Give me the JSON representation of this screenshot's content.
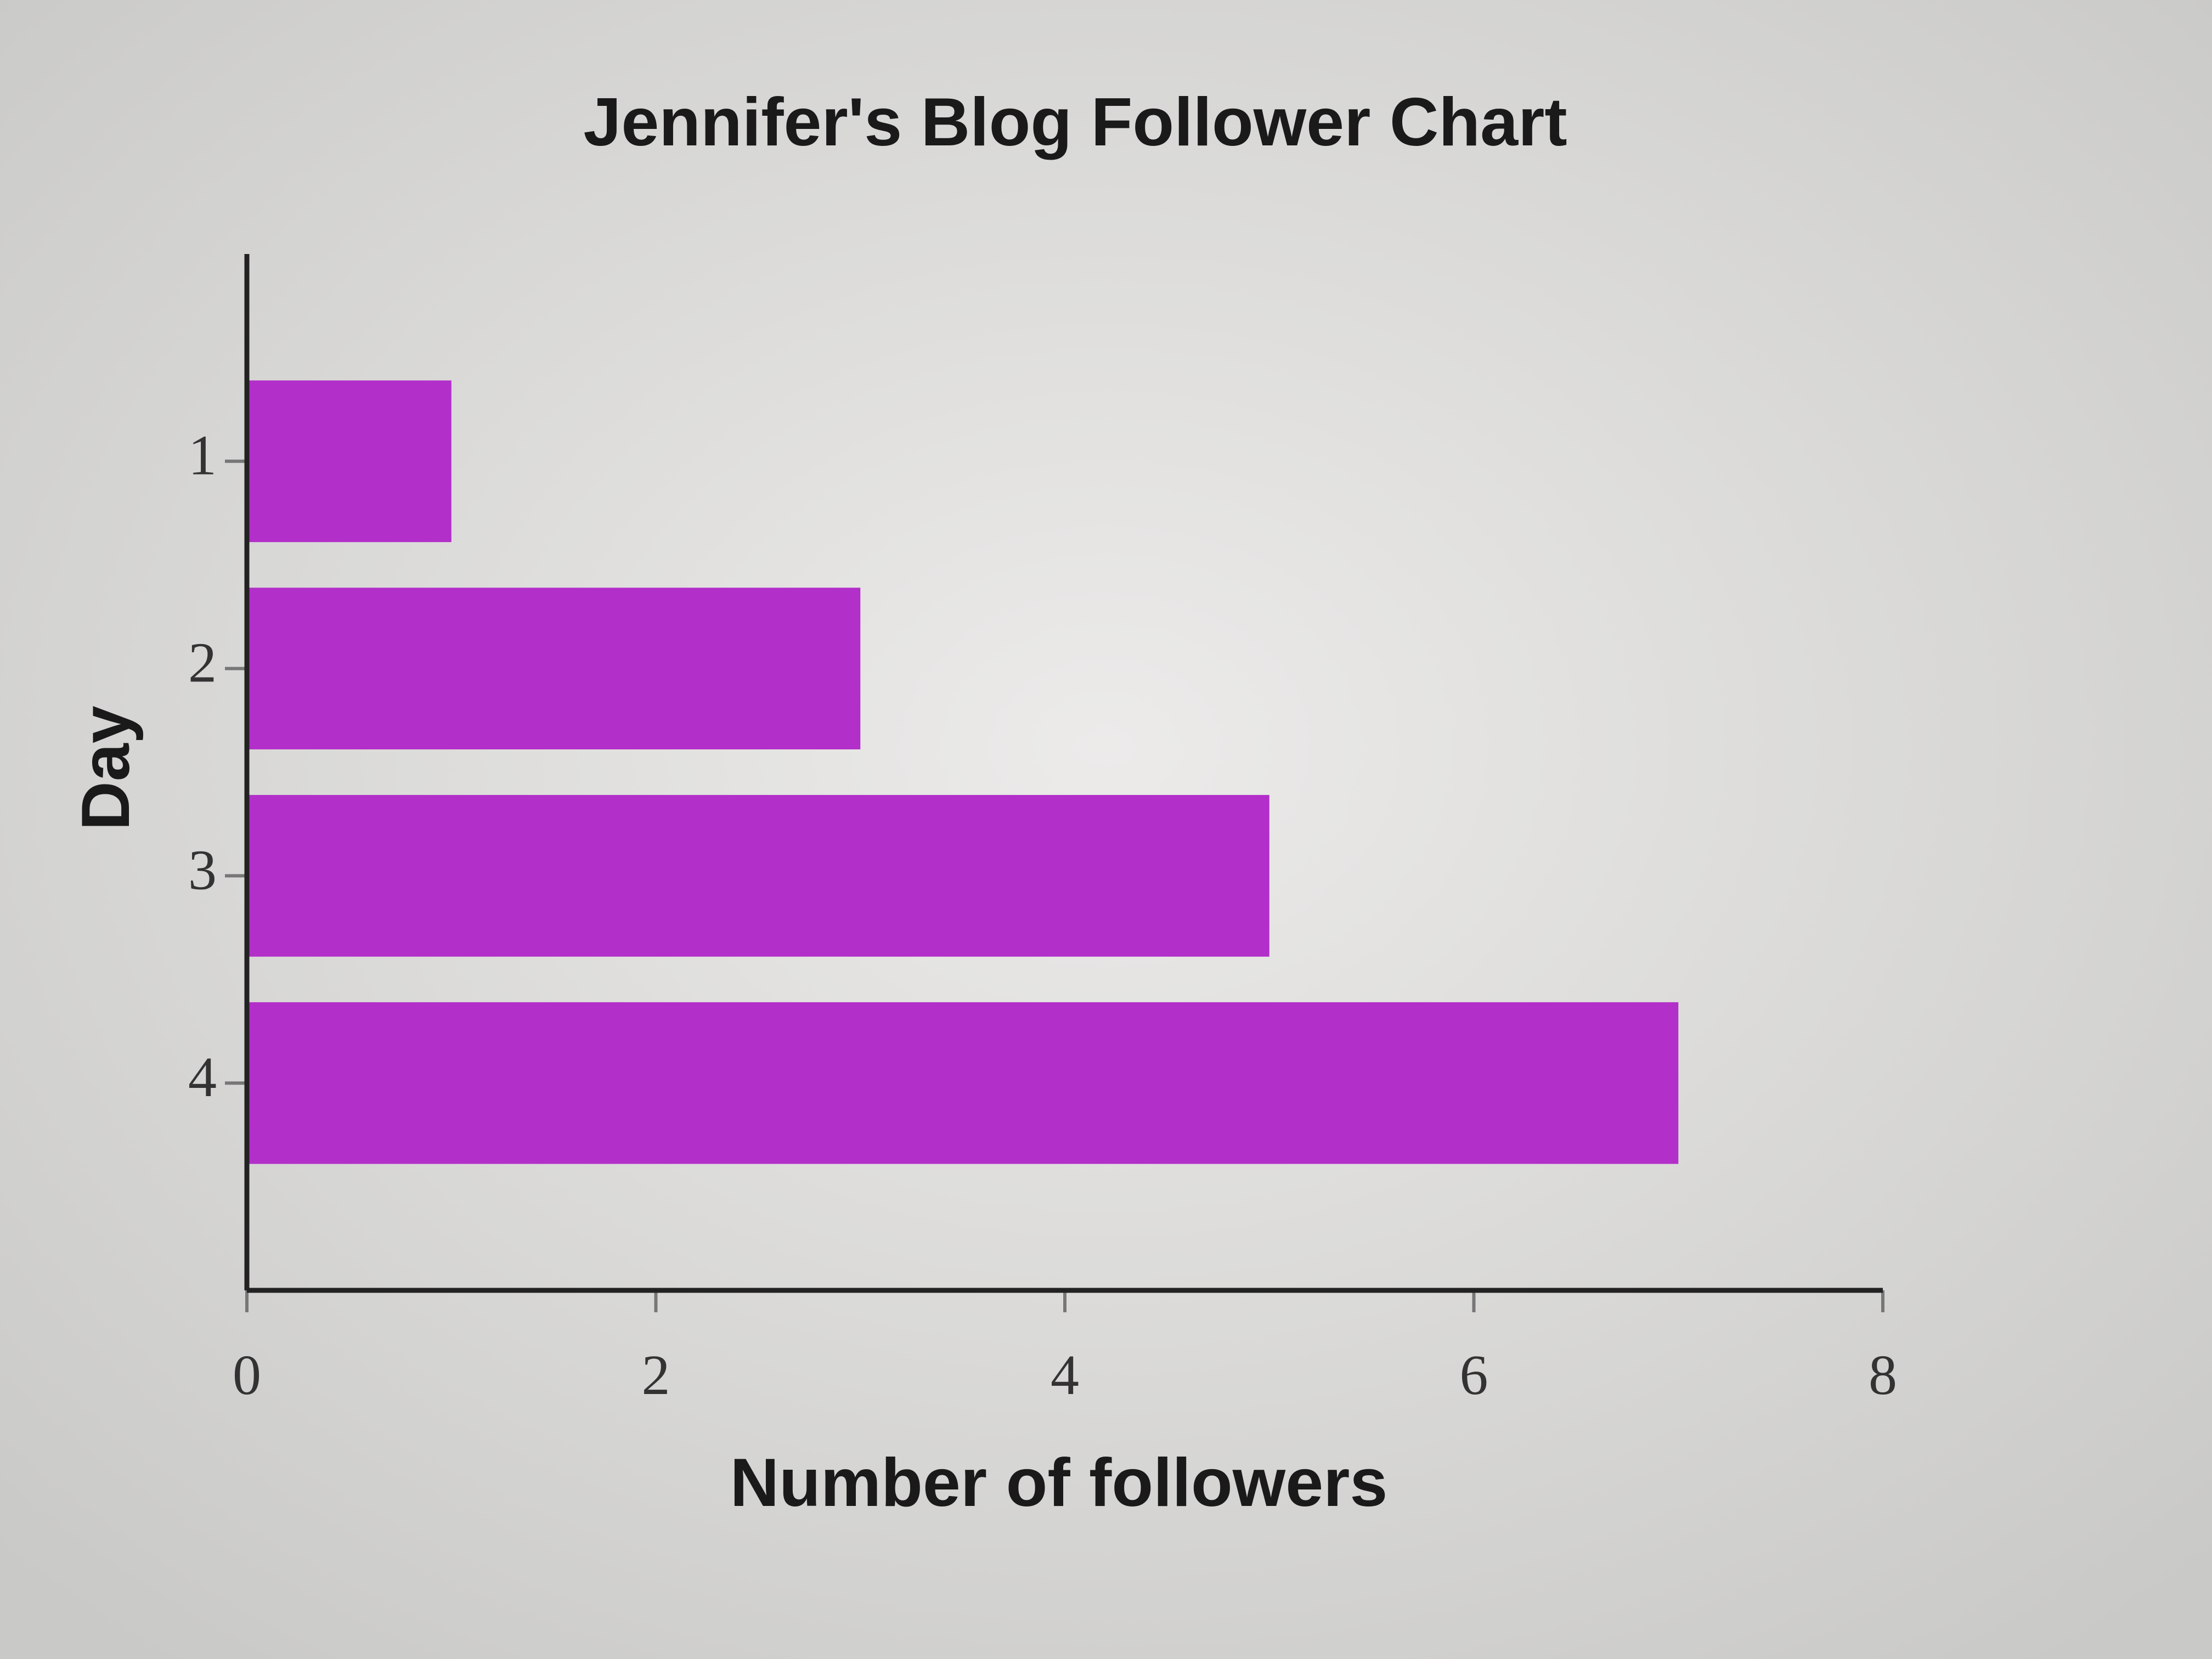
{
  "chart_data": {
    "type": "bar",
    "orientation": "horizontal",
    "title": "Jennifer's Blog Follower Chart",
    "x_label": "Number of followers",
    "y_label": "Day",
    "categories": [
      "1",
      "2",
      "3",
      "4"
    ],
    "values": [
      1,
      3,
      5,
      7
    ],
    "color": "#b22fc9",
    "xlim": [
      0,
      8
    ],
    "xticks": [
      0,
      2,
      4,
      6,
      8
    ],
    "grid": false
  }
}
